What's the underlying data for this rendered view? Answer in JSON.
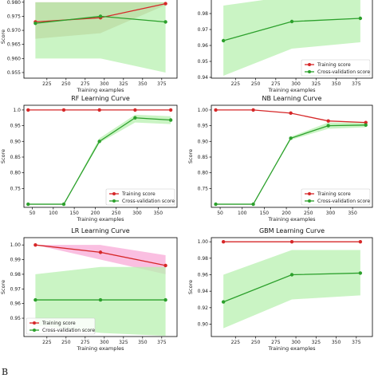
{
  "figure_label": "B",
  "colors": {
    "training": "#d62728",
    "cv": "#2ca02c",
    "cv_band": "#b8f0b0",
    "train_band_brown": "#c8a080",
    "train_band_pink": "#f58ac8"
  },
  "chart_data": [
    {
      "type": "line",
      "title": "",
      "xlabel": "Training examples",
      "ylabel": "Score",
      "xlim": [
        195,
        395
      ],
      "ylim": [
        0.953,
        0.9825
      ],
      "xticks": [
        225,
        250,
        275,
        300,
        325,
        350,
        375
      ],
      "yticks": [
        0.955,
        0.96,
        0.965,
        0.97,
        0.975,
        0.98
      ],
      "ytick_labels": [
        "0.955",
        "0.960",
        "0.965",
        "0.970",
        "0.975",
        "0.980"
      ],
      "legend": false,
      "series": [
        {
          "name": "Training score",
          "role": "training",
          "band": "brown",
          "x": [
            210,
            295,
            380
          ],
          "y": [
            0.973,
            0.9745,
            0.9795
          ],
          "lower": [
            0.967,
            0.969,
            0.979
          ],
          "upper": [
            0.98,
            0.98,
            0.98
          ]
        },
        {
          "name": "Cross-validation score",
          "role": "cv",
          "band": "green",
          "x": [
            210,
            295,
            380
          ],
          "y": [
            0.9725,
            0.975,
            0.973
          ],
          "lower": [
            0.96,
            0.96,
            0.955
          ],
          "upper": [
            0.98,
            0.98,
            0.98
          ]
        }
      ]
    },
    {
      "type": "line",
      "title": "",
      "xlabel": "Training examples",
      "ylabel": "",
      "xlim": [
        195,
        395
      ],
      "ylim": [
        0.9395,
        0.9915
      ],
      "xticks": [
        225,
        250,
        275,
        300,
        325,
        350,
        375
      ],
      "yticks": [
        0.94,
        0.95,
        0.96,
        0.97,
        0.98
      ],
      "ytick_labels": [
        "0.94",
        "0.95",
        "0.96",
        "0.97",
        "0.98"
      ],
      "legend": true,
      "legend_position": "bottom-right",
      "legend_labels": [
        "Training score",
        "Cross-validation score"
      ],
      "series": [
        {
          "name": "Training score",
          "role": "training",
          "band": "none",
          "x": [
            210,
            295,
            380
          ],
          "y": [
            1.0,
            1.0,
            1.0
          ]
        },
        {
          "name": "Cross-validation score",
          "role": "cv",
          "band": "green",
          "x": [
            210,
            295,
            380
          ],
          "y": [
            0.963,
            0.975,
            0.977
          ],
          "lower": [
            0.941,
            0.958,
            0.962
          ],
          "upper": [
            0.985,
            0.991,
            0.991
          ]
        }
      ]
    },
    {
      "type": "line",
      "title": "RF Learning Curve",
      "xlabel": "Training examples",
      "ylabel": "Score",
      "xlim": [
        30,
        395
      ],
      "ylim": [
        0.69,
        1.015
      ],
      "xticks": [
        50,
        100,
        150,
        200,
        250,
        300,
        350
      ],
      "yticks": [
        0.75,
        0.8,
        0.85,
        0.9,
        0.95,
        1.0
      ],
      "ytick_labels": [
        "0.75",
        "0.80",
        "0.85",
        "0.90",
        "0.95",
        "1.0"
      ],
      "legend": true,
      "legend_position": "bottom-right",
      "legend_labels": [
        "Training score",
        "Cross-validation score"
      ],
      "series": [
        {
          "name": "Training score",
          "role": "training",
          "band": "none",
          "x": [
            40,
            125,
            210,
            295,
            380
          ],
          "y": [
            1.0,
            1.0,
            1.0,
            1.0,
            1.0
          ]
        },
        {
          "name": "Cross-validation score",
          "role": "cv",
          "band": "green",
          "x": [
            40,
            125,
            210,
            295,
            380
          ],
          "y": [
            0.7,
            0.7,
            0.9,
            0.975,
            0.968
          ],
          "lower": [
            0.7,
            0.7,
            0.895,
            0.96,
            0.955
          ],
          "upper": [
            0.7,
            0.7,
            0.91,
            0.985,
            0.98
          ]
        }
      ]
    },
    {
      "type": "line",
      "title": "NB Learning Curve",
      "xlabel": "Training examples",
      "ylabel": "Score",
      "xlim": [
        30,
        395
      ],
      "ylim": [
        0.69,
        1.015
      ],
      "xticks": [
        50,
        100,
        150,
        200,
        250,
        300,
        350
      ],
      "yticks": [
        0.75,
        0.8,
        0.85,
        0.9,
        0.95,
        1.0
      ],
      "ytick_labels": [
        "0.75",
        "0.80",
        "0.85",
        "0.90",
        "0.95",
        "1.00"
      ],
      "legend": true,
      "legend_position": "bottom-right",
      "legend_labels": [
        "Training score",
        "Cross-validation score"
      ],
      "series": [
        {
          "name": "Training score",
          "role": "training",
          "band": "none",
          "x": [
            40,
            125,
            210,
            295,
            380
          ],
          "y": [
            1.0,
            1.0,
            0.99,
            0.965,
            0.96
          ]
        },
        {
          "name": "Cross-validation score",
          "role": "cv",
          "band": "green",
          "x": [
            40,
            125,
            210,
            295,
            380
          ],
          "y": [
            0.7,
            0.7,
            0.91,
            0.95,
            0.952
          ],
          "lower": [
            0.7,
            0.7,
            0.905,
            0.94,
            0.945
          ],
          "upper": [
            0.7,
            0.7,
            0.915,
            0.96,
            0.96
          ]
        }
      ]
    },
    {
      "type": "line",
      "title": "LR Learning Curve",
      "xlabel": "Training examples",
      "ylabel": "Score",
      "xlim": [
        195,
        395
      ],
      "ylim": [
        0.9375,
        1.005
      ],
      "xticks": [
        225,
        250,
        275,
        300,
        325,
        350,
        375
      ],
      "yticks": [
        0.95,
        0.96,
        0.97,
        0.98,
        0.99,
        1.0
      ],
      "ytick_labels": [
        "0.95",
        "0.96",
        "0.97",
        "0.98",
        "0.99",
        "1.00"
      ],
      "legend": true,
      "legend_position": "bottom-left",
      "legend_labels": [
        "Training score",
        "Cross-validation score"
      ],
      "series": [
        {
          "name": "Training score",
          "role": "training",
          "band": "pink",
          "x": [
            210,
            295,
            380
          ],
          "y": [
            1.0,
            0.995,
            0.986
          ],
          "lower": [
            1.0,
            0.99,
            0.98
          ],
          "upper": [
            1.0,
            1.0,
            0.993
          ]
        },
        {
          "name": "Cross-validation score",
          "role": "cv",
          "band": "green",
          "x": [
            210,
            295,
            380
          ],
          "y": [
            0.9625,
            0.9625,
            0.9625
          ],
          "lower": [
            0.945,
            0.94,
            0.938
          ],
          "upper": [
            0.98,
            0.985,
            0.985
          ]
        }
      ]
    },
    {
      "type": "line",
      "title": "GBM Learning Curve",
      "xlabel": "Training examples",
      "ylabel": "Score",
      "xlim": [
        195,
        395
      ],
      "ylim": [
        0.885,
        1.005
      ],
      "xticks": [
        225,
        250,
        275,
        300,
        325,
        350,
        375
      ],
      "yticks": [
        0.9,
        0.92,
        0.94,
        0.96,
        0.98,
        1.0
      ],
      "ytick_labels": [
        "0.90",
        "0.92",
        "0.94",
        "0.96",
        "0.98",
        "1.00"
      ],
      "legend": false,
      "series": [
        {
          "name": "Training score",
          "role": "training",
          "band": "none",
          "x": [
            210,
            295,
            380
          ],
          "y": [
            1.0,
            1.0,
            1.0
          ]
        },
        {
          "name": "Cross-validation score",
          "role": "cv",
          "band": "green",
          "x": [
            210,
            295,
            380
          ],
          "y": [
            0.927,
            0.96,
            0.962
          ],
          "lower": [
            0.895,
            0.93,
            0.935
          ],
          "upper": [
            0.96,
            0.99,
            0.99
          ]
        }
      ]
    }
  ]
}
